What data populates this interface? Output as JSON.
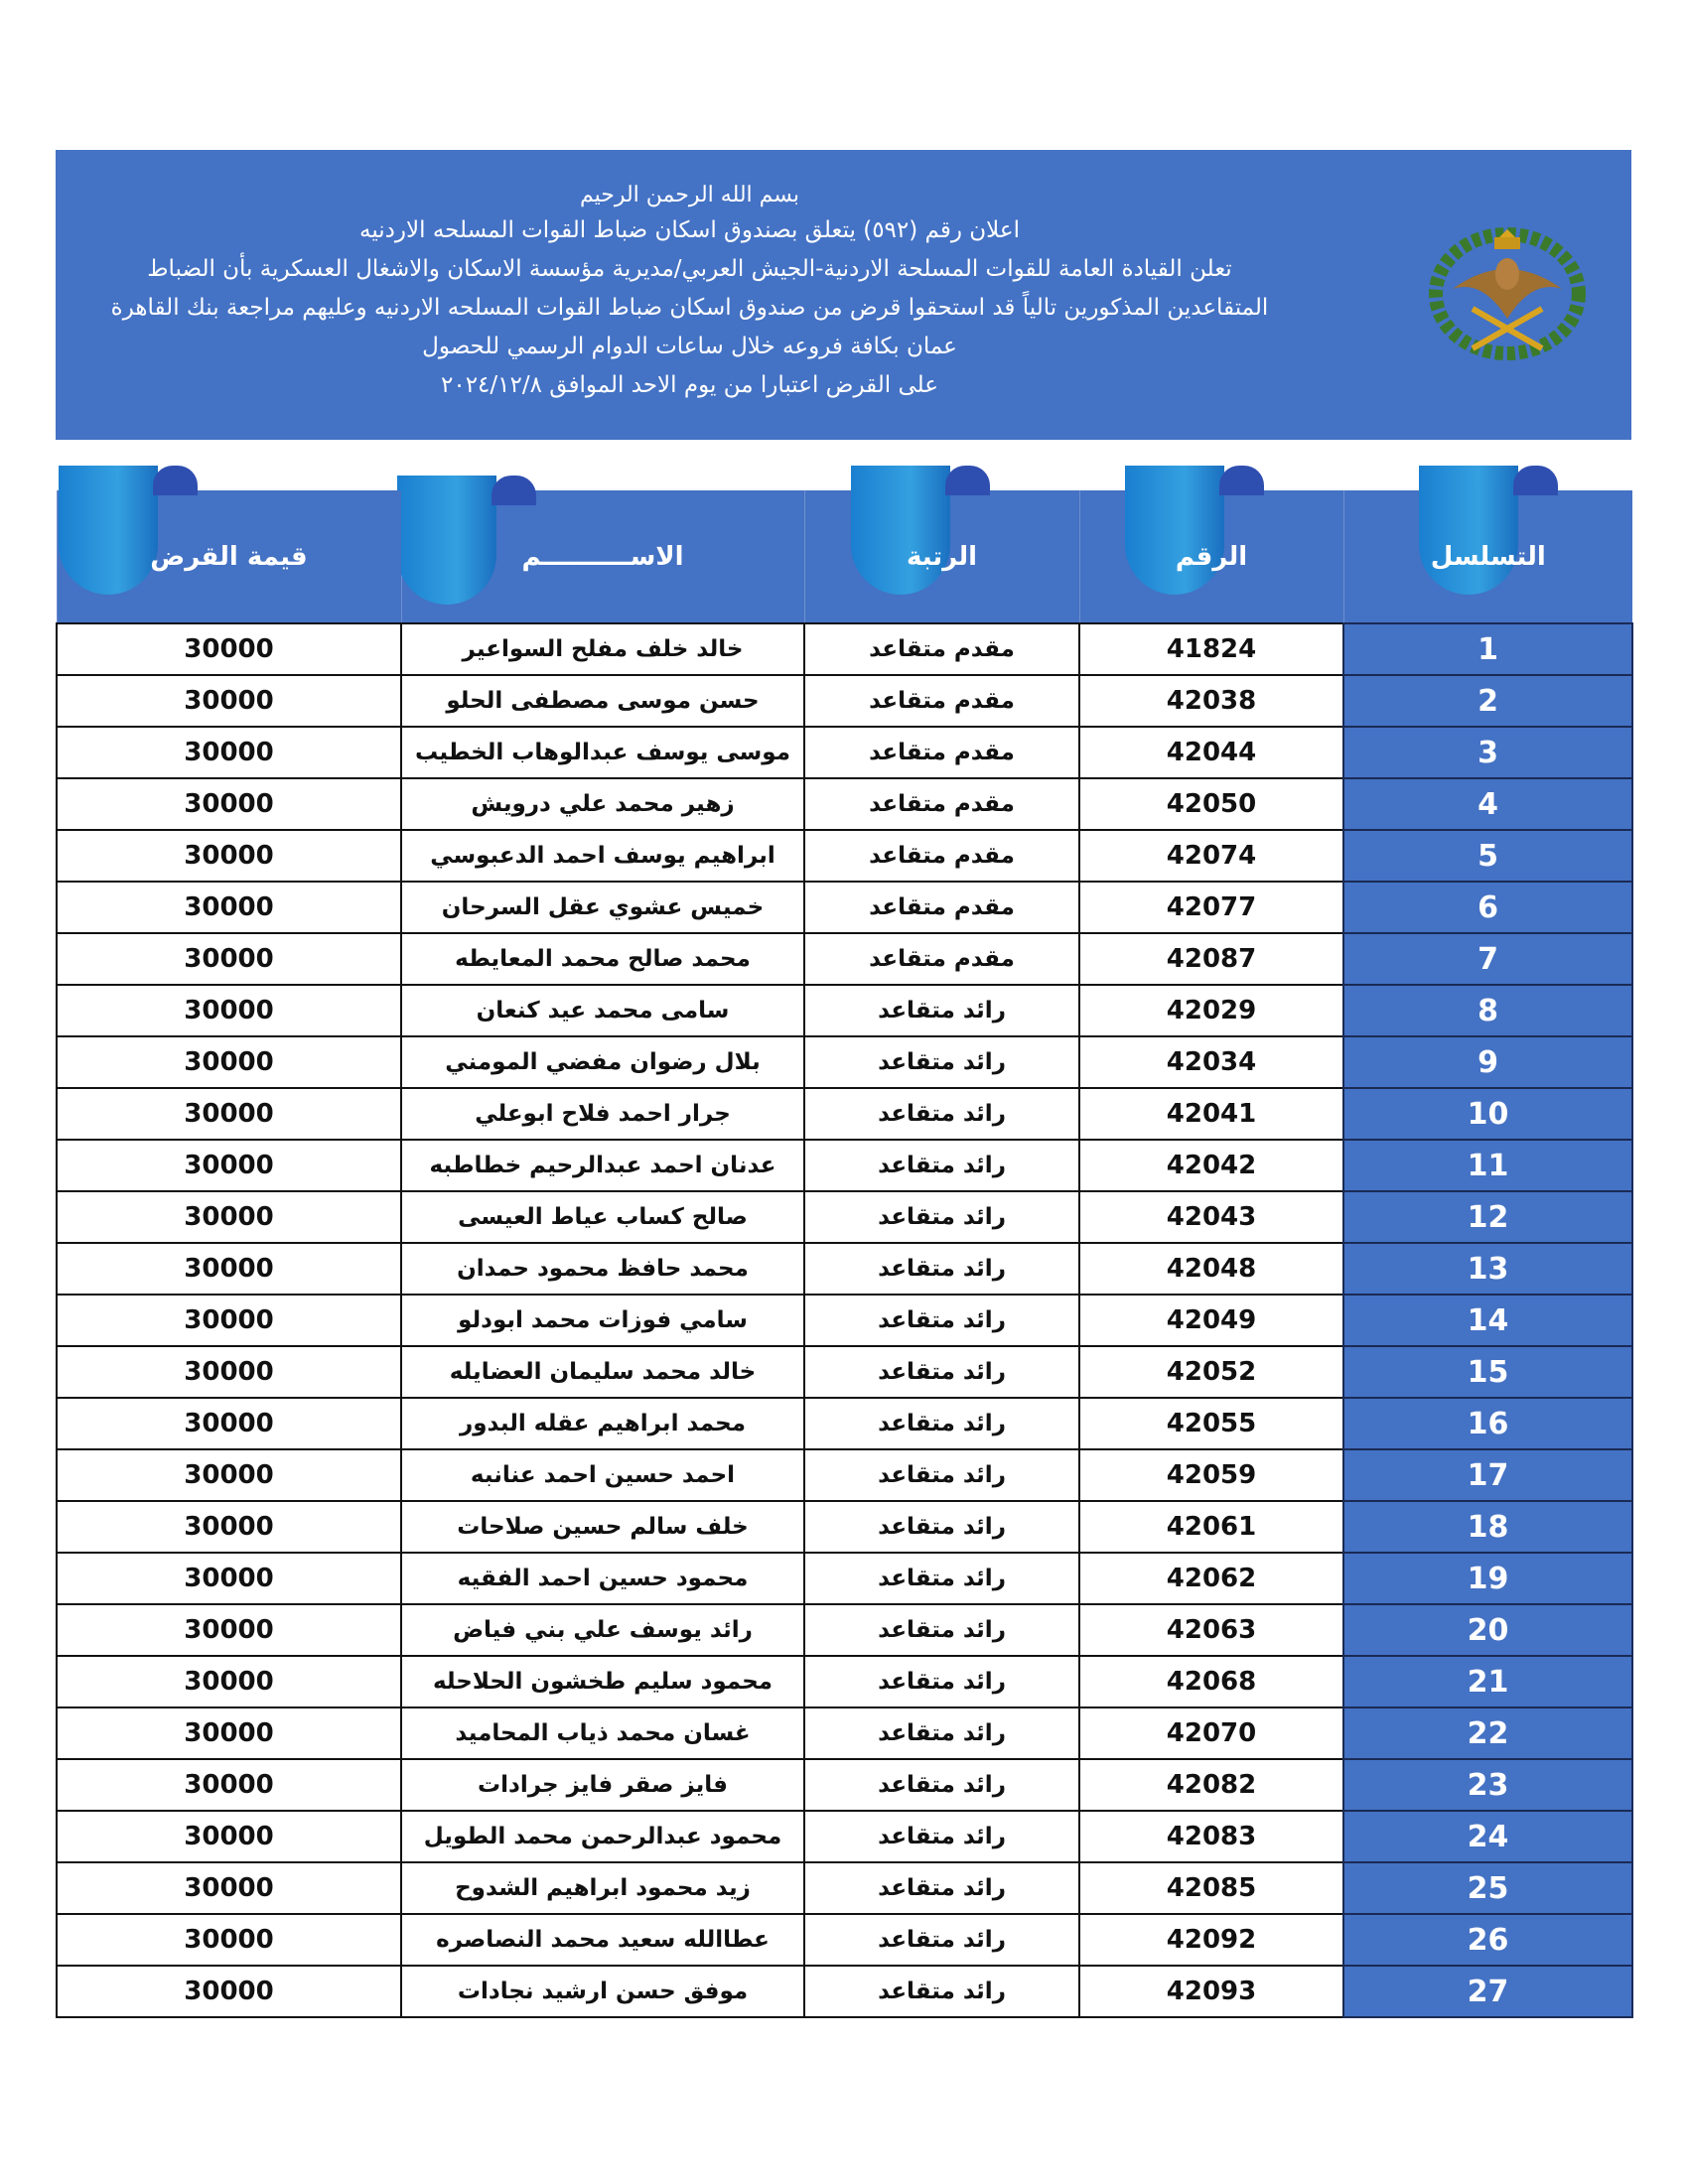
{
  "header": {
    "basmala": "بسم الله الرحمن الرحيم",
    "lines": [
      "اعلان رقم (٥٩٢) يتعلق بصندوق اسكان ضباط القوات المسلحه الاردنيه",
      "تعلن القيادة العامة للقوات المسلحة الاردنية-الجيش العربي/مديرية مؤسسة الاسكان والاشغال العسكرية بأن الضباط",
      "المتقاعدين المذكورين تالياً قد استحقوا قرض من صندوق اسكان ضباط القوات المسلحه الاردنيه وعليهم مراجعة بنك القاهرة",
      "عمان بكافة فروعه خلال ساعات الدوام الرسمي للحصول",
      "على القرض اعتبارا من يوم الاحد الموافق ٢٠٢٤/١٢/٨"
    ],
    "emblem_icon": "jordan-armed-forces-emblem",
    "banner_color": "#4472c4"
  },
  "table": {
    "columns": [
      "التسلسل",
      "الرقم",
      "الرتبة",
      "الاســــــــــم",
      "قيمة القرض"
    ],
    "rows": [
      [
        "1",
        "41824",
        "مقدم متقاعد",
        "خالد خلف مفلح السواعير",
        "30000"
      ],
      [
        "2",
        "42038",
        "مقدم متقاعد",
        "حسن موسى مصطفى الحلو",
        "30000"
      ],
      [
        "3",
        "42044",
        "مقدم متقاعد",
        "موسى يوسف عبدالوهاب الخطيب",
        "30000"
      ],
      [
        "4",
        "42050",
        "مقدم متقاعد",
        "زهير محمد علي درويش",
        "30000"
      ],
      [
        "5",
        "42074",
        "مقدم متقاعد",
        "ابراهيم يوسف احمد الدعبوسي",
        "30000"
      ],
      [
        "6",
        "42077",
        "مقدم متقاعد",
        "خميس عشوي عقل السرحان",
        "30000"
      ],
      [
        "7",
        "42087",
        "مقدم متقاعد",
        "محمد صالح محمد المعايطه",
        "30000"
      ],
      [
        "8",
        "42029",
        "رائد متقاعد",
        "سامى محمد عيد كنعان",
        "30000"
      ],
      [
        "9",
        "42034",
        "رائد متقاعد",
        "بلال رضوان مفضي المومني",
        "30000"
      ],
      [
        "10",
        "42041",
        "رائد متقاعد",
        "جرار احمد فلاح ابوعلي",
        "30000"
      ],
      [
        "11",
        "42042",
        "رائد متقاعد",
        "عدنان احمد عبدالرحيم خطاطبه",
        "30000"
      ],
      [
        "12",
        "42043",
        "رائد متقاعد",
        "صالح كساب عياط العيسى",
        "30000"
      ],
      [
        "13",
        "42048",
        "رائد متقاعد",
        "محمد حافظ محمود حمدان",
        "30000"
      ],
      [
        "14",
        "42049",
        "رائد متقاعد",
        "سامي فوزات محمد ابودلو",
        "30000"
      ],
      [
        "15",
        "42052",
        "رائد متقاعد",
        "خالد محمد سليمان العضايله",
        "30000"
      ],
      [
        "16",
        "42055",
        "رائد متقاعد",
        "محمد ابراهيم عقله البدور",
        "30000"
      ],
      [
        "17",
        "42059",
        "رائد متقاعد",
        "احمد حسين احمد عنانبه",
        "30000"
      ],
      [
        "18",
        "42061",
        "رائد متقاعد",
        "خلف سالم حسين صلاحات",
        "30000"
      ],
      [
        "19",
        "42062",
        "رائد متقاعد",
        "محمود حسين احمد الفقيه",
        "30000"
      ],
      [
        "20",
        "42063",
        "رائد متقاعد",
        "رائد يوسف علي بني فياض",
        "30000"
      ],
      [
        "21",
        "42068",
        "رائد متقاعد",
        "محمود سليم طخشون الحلاحله",
        "30000"
      ],
      [
        "22",
        "42070",
        "رائد متقاعد",
        "غسان محمد ذياب المحاميد",
        "30000"
      ],
      [
        "23",
        "42082",
        "رائد متقاعد",
        "فايز صقر فايز جرادات",
        "30000"
      ],
      [
        "24",
        "42083",
        "رائد متقاعد",
        "محمود عبدالرحمن محمد الطويل",
        "30000"
      ],
      [
        "25",
        "42085",
        "رائد متقاعد",
        "زيد محمود ابراهيم الشدوح",
        "30000"
      ],
      [
        "26",
        "42092",
        "رائد متقاعد",
        "عطاالله سعيد محمد النصاصره",
        "30000"
      ],
      [
        "27",
        "42093",
        "رائد متقاعد",
        "موفق حسن ارشيد نجادات",
        "30000"
      ]
    ]
  }
}
